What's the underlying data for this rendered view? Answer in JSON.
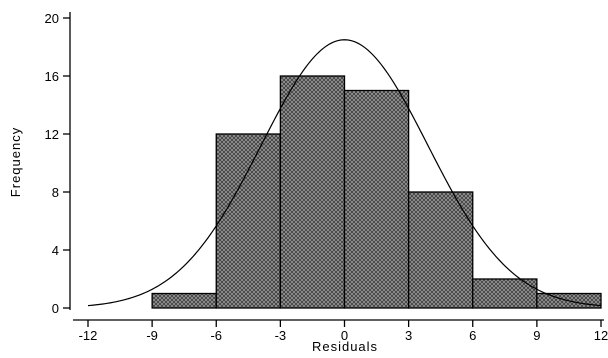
{
  "chart_data": {
    "type": "bar",
    "subtype": "histogram",
    "title": "",
    "xlabel": "Residuals",
    "ylabel": "Frequency",
    "xlim": [
      -12,
      12
    ],
    "ylim": [
      0,
      20
    ],
    "x_ticks": [
      -12,
      -9,
      -6,
      -3,
      0,
      3,
      6,
      9,
      12
    ],
    "x_tick_labels": [
      "-12",
      "-9",
      "-6",
      "-3",
      "0",
      "3",
      "6",
      "9",
      "12"
    ],
    "y_ticks": [
      0,
      4,
      8,
      12,
      16,
      20
    ],
    "y_tick_labels": [
      "0",
      "4",
      "8",
      "12",
      "16",
      "20"
    ],
    "bins": [
      {
        "start": -9,
        "end": -6,
        "value": 1
      },
      {
        "start": -6,
        "end": -3,
        "value": 12
      },
      {
        "start": -3,
        "end": 0,
        "value": 16
      },
      {
        "start": 0,
        "end": 3,
        "value": 15
      },
      {
        "start": 3,
        "end": 6,
        "value": 8
      },
      {
        "start": 6,
        "end": 9,
        "value": 2
      },
      {
        "start": 9,
        "end": 12,
        "value": 1
      }
    ],
    "normal_curve": {
      "mean": 0,
      "sd": 3.9,
      "peak": 18.5
    },
    "grid": false,
    "legend": "none",
    "bar_fill": "#8a8a8a",
    "bar_edge": "#000000"
  }
}
